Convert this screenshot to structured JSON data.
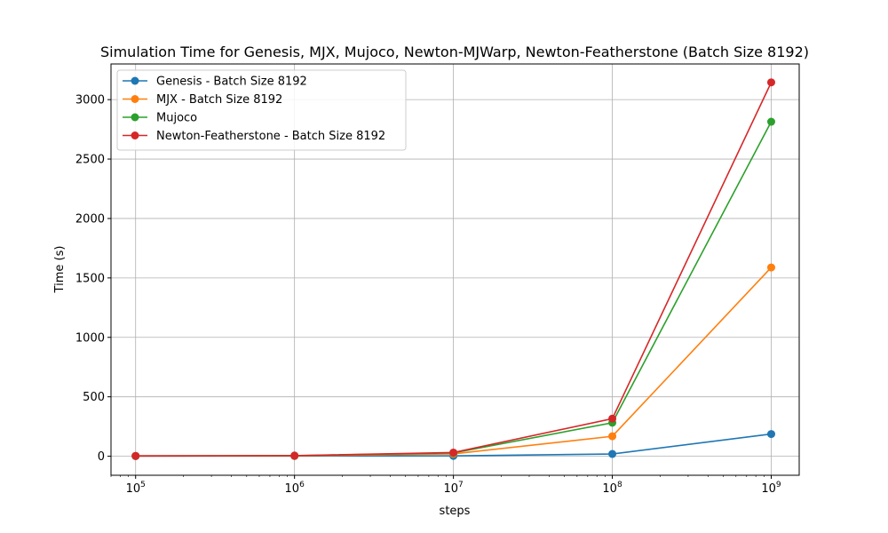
{
  "chart_data": {
    "type": "line",
    "title": "Simulation Time for Genesis, MJX, Mujoco, Newton-MJWarp, Newton-Featherstone (Batch Size 8192)",
    "xlabel": "steps",
    "ylabel": "Time (s)",
    "xscale": "log",
    "xlim": [
      70000,
      1500000000
    ],
    "ylim": [
      -160,
      3300
    ],
    "x": [
      100000,
      1000000,
      10000000,
      100000000,
      1000000000
    ],
    "x_ticks": [
      100000,
      1000000,
      10000000,
      100000000,
      1000000000
    ],
    "x_tick_labels": [
      {
        "base": "10",
        "exp": "5"
      },
      {
        "base": "10",
        "exp": "6"
      },
      {
        "base": "10",
        "exp": "7"
      },
      {
        "base": "10",
        "exp": "8"
      },
      {
        "base": "10",
        "exp": "9"
      }
    ],
    "y_ticks": [
      0,
      500,
      1000,
      1500,
      2000,
      2500,
      3000
    ],
    "y_tick_labels": [
      "0",
      "500",
      "1000",
      "1500",
      "2000",
      "2500",
      "3000"
    ],
    "grid": true,
    "legend_position": "top-left",
    "series": [
      {
        "name": "Genesis - Batch Size 8192",
        "color": "#1f77b4",
        "values": [
          1,
          2,
          3,
          19,
          187
        ]
      },
      {
        "name": "MJX - Batch Size 8192",
        "color": "#ff7f0e",
        "values": [
          2,
          3,
          20,
          168,
          1588
        ]
      },
      {
        "name": "Mujoco",
        "color": "#2ca02c",
        "values": [
          3,
          5,
          28,
          282,
          2814
        ]
      },
      {
        "name": "Newton-Featherstone - Batch Size 8192",
        "color": "#d62728",
        "values": [
          3,
          5,
          31,
          316,
          3145
        ]
      }
    ]
  }
}
